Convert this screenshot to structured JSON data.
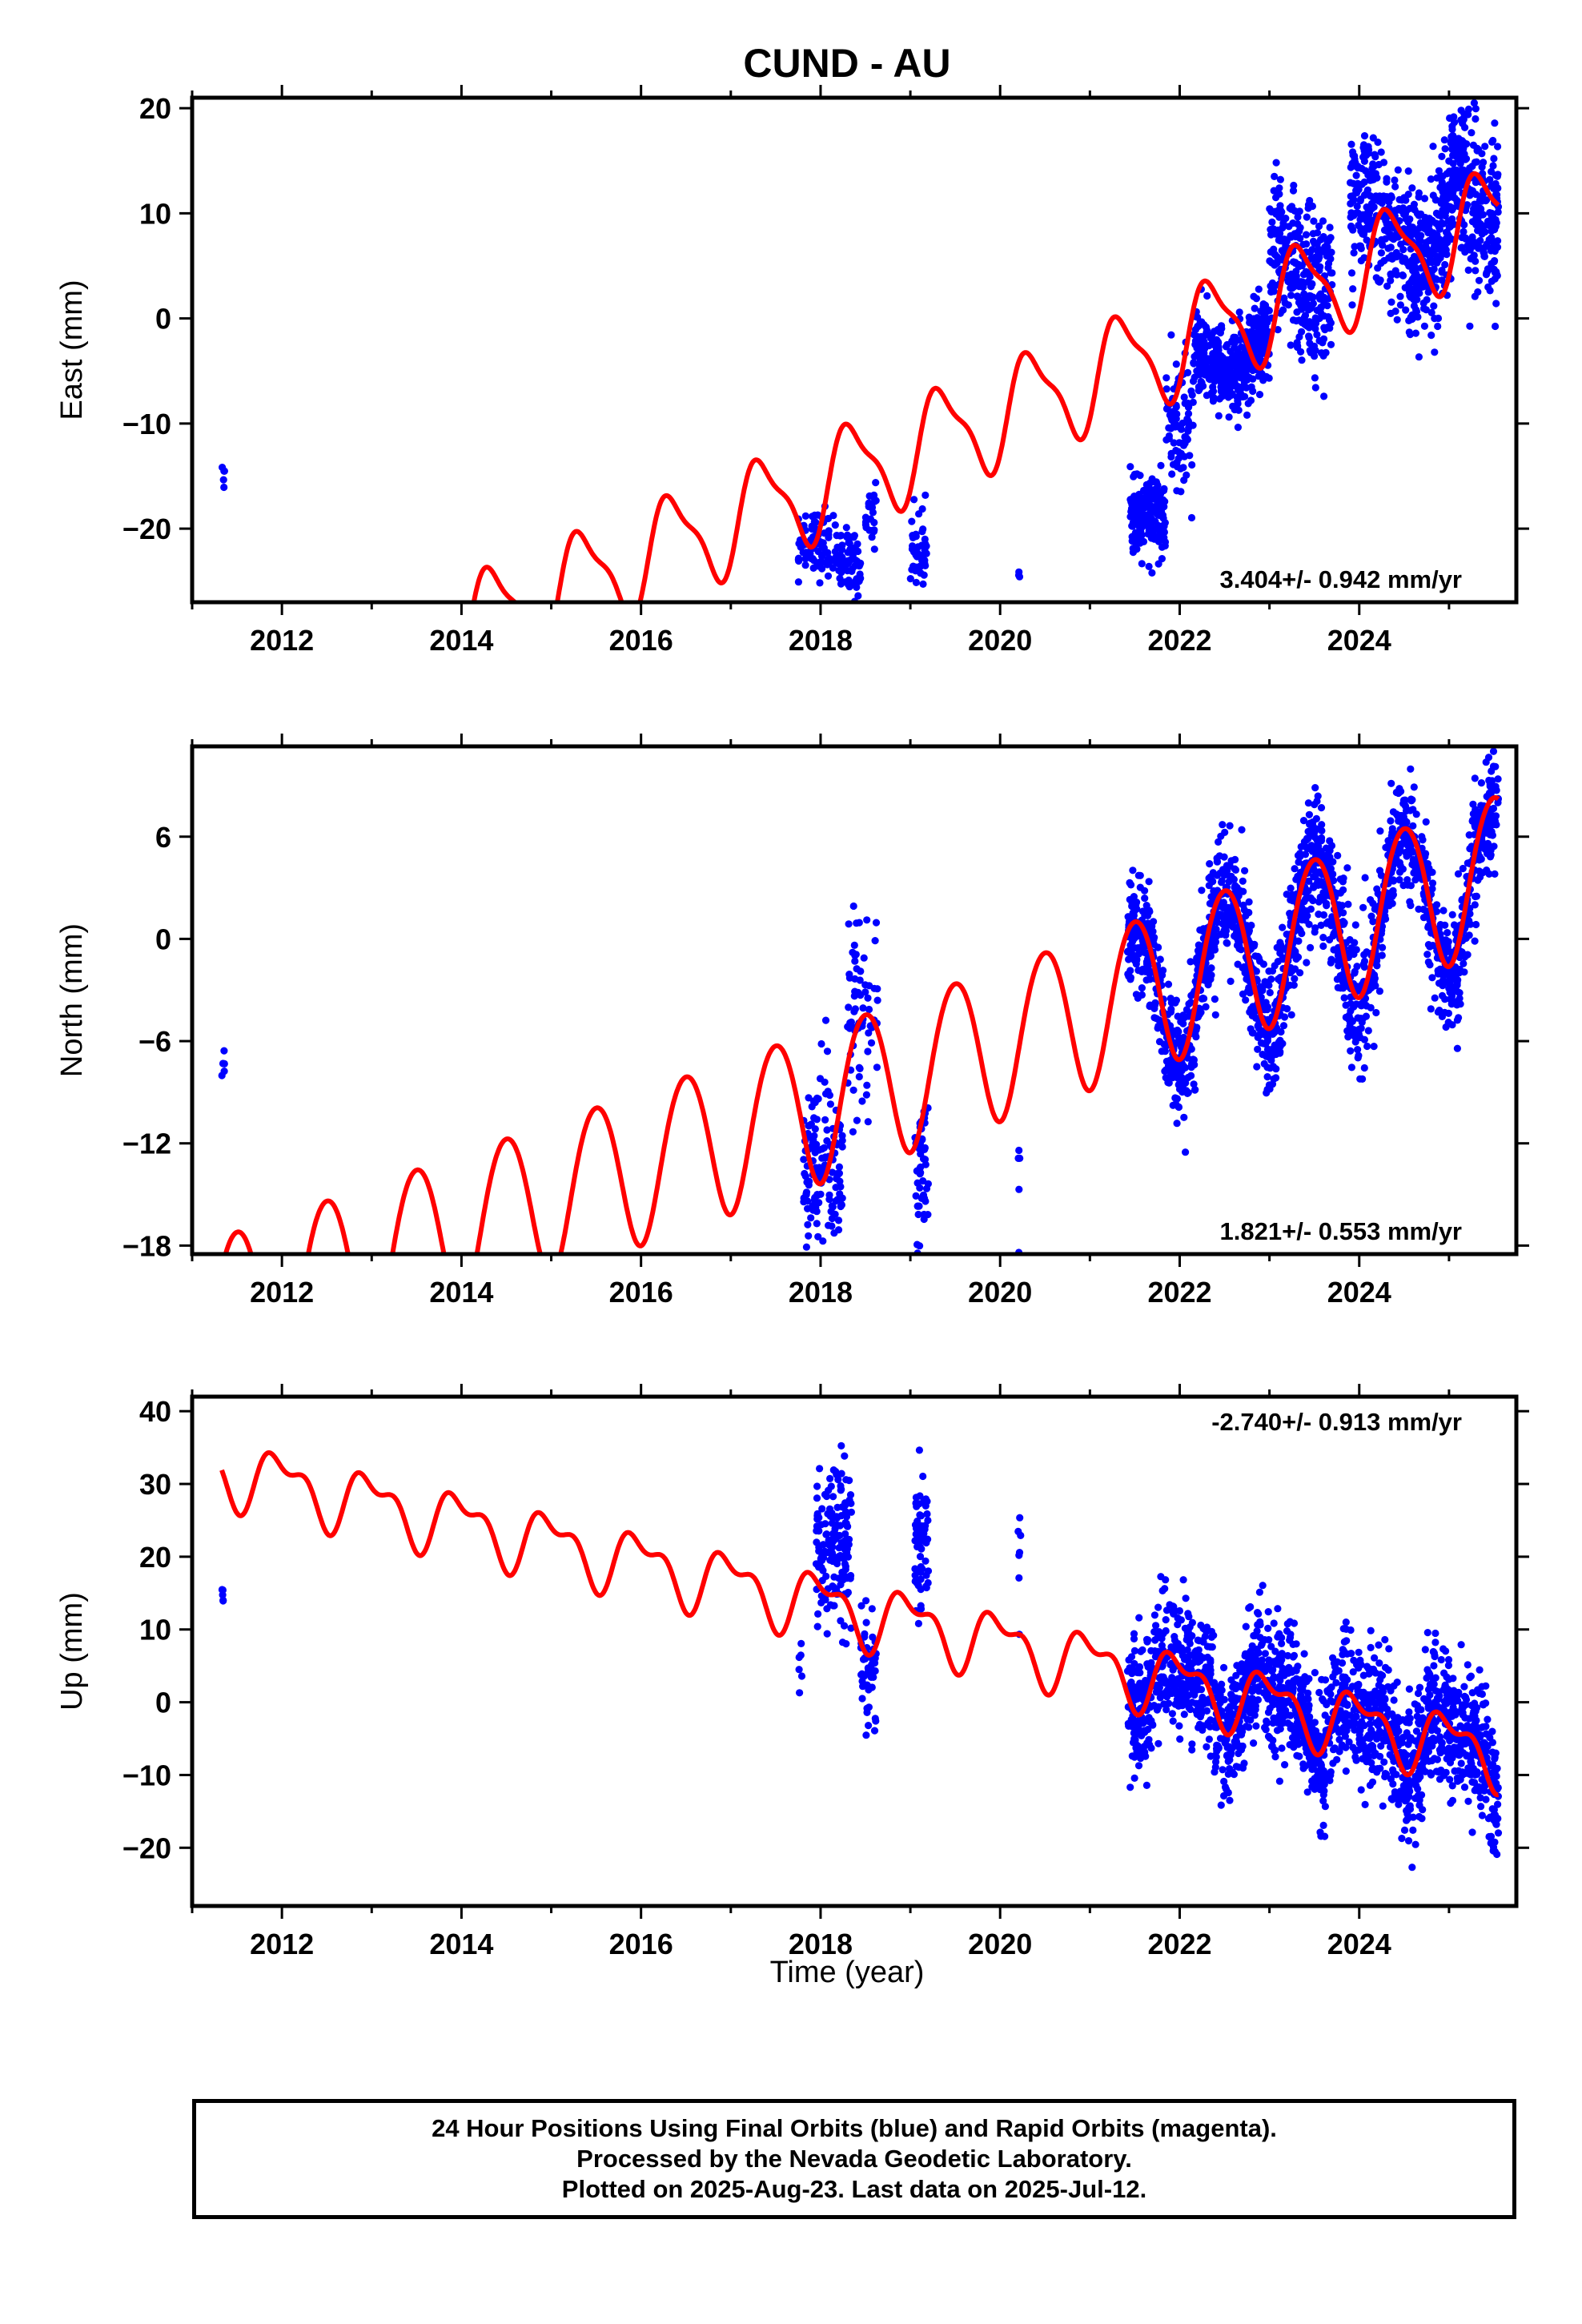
{
  "chart_data": {
    "type": "scatter",
    "title": "CUND - AU",
    "xlabel": "Time (year)",
    "xlim": [
      2011.0,
      2025.75
    ],
    "x_ticks": [
      2012,
      2014,
      2016,
      2018,
      2020,
      2022,
      2024
    ],
    "x_tick_labels": [
      "2012",
      "2014",
      "2016",
      "2018",
      "2020",
      "2022",
      "2024"
    ],
    "point_color": "#0000ff",
    "model_color": "#ff0000",
    "panels": [
      {
        "name": "East",
        "ylabel": "East (mm)",
        "ylim": [
          -27,
          21
        ],
        "y_ticks": [
          -20,
          -10,
          0,
          10,
          20
        ],
        "y_tick_labels": [
          "−20",
          "−10",
          "0",
          "10",
          "20"
        ],
        "rate_label": "3.404+/- 0.942 mm/yr",
        "rate_position": "bottom-right",
        "model": {
          "t0": 2021.5,
          "offset": -4.0,
          "rate": 3.404,
          "annual_amp": 4.6,
          "annual_peak": 0.35,
          "semi_amp": 1.4,
          "semi_peak": 0.2
        },
        "point_groups": [
          {
            "start": 2011.33,
            "end": 2011.36,
            "n": 5,
            "center": -14.0,
            "spread": 1.3,
            "amp": 0
          },
          {
            "start": 2017.75,
            "end": 2018.45,
            "n": 150,
            "center": -22.5,
            "spread": 1.6,
            "amp": 1.2
          },
          {
            "start": 2018.5,
            "end": 2018.62,
            "n": 25,
            "center": -18.5,
            "spread": 1.5,
            "amp": 0
          },
          {
            "start": 2019.0,
            "end": 2019.18,
            "n": 50,
            "center": -22.0,
            "spread": 1.8,
            "amp": 0
          },
          {
            "start": 2020.18,
            "end": 2020.22,
            "n": 5,
            "center": -25.0,
            "spread": 1.0,
            "amp": 0
          },
          {
            "start": 2021.45,
            "end": 2021.85,
            "n": 180,
            "center": -19.0,
            "spread": 1.8,
            "amp": 0
          },
          {
            "start": 2021.85,
            "end": 2022.15,
            "n": 90,
            "center": -10.0,
            "spread": 3.5,
            "amp": 0
          },
          {
            "start": 2022.15,
            "end": 2023.0,
            "n": 420,
            "center": -3.5,
            "spread": 2.0,
            "amp": 2.0
          },
          {
            "start": 2023.0,
            "end": 2023.7,
            "n": 300,
            "center": 4.5,
            "spread": 3.8,
            "amp": 2.5
          },
          {
            "start": 2023.9,
            "end": 2024.55,
            "n": 260,
            "center": 9.5,
            "spread": 3.0,
            "amp": 2.0
          },
          {
            "start": 2024.55,
            "end": 2025.0,
            "n": 260,
            "center": 6.0,
            "spread": 3.5,
            "amp": 2.0
          },
          {
            "start": 2025.0,
            "end": 2025.55,
            "n": 300,
            "center": 11.0,
            "spread": 4.0,
            "amp": 2.5
          }
        ]
      },
      {
        "name": "North",
        "ylabel": "North (mm)",
        "ylim": [
          -18.5,
          11.3
        ],
        "y_ticks": [
          -18,
          -12,
          -6,
          0,
          6
        ],
        "y_tick_labels": [
          "−18",
          "−12",
          "−6",
          "0",
          "6"
        ],
        "rate_label": "1.821+/- 0.553 mm/yr",
        "rate_position": "bottom-right",
        "model": {
          "t0": 2021.5,
          "offset": -3.2,
          "rate": 1.821,
          "annual_amp": 4.5,
          "annual_peak": 0.5,
          "semi_amp": 0.3,
          "semi_peak": 0.25
        },
        "point_groups": [
          {
            "start": 2011.33,
            "end": 2011.36,
            "n": 5,
            "center": -7.6,
            "spread": 0.8,
            "amp": 0
          },
          {
            "start": 2017.8,
            "end": 2018.25,
            "n": 140,
            "center": -14.5,
            "spread": 2.8,
            "amp": 1.0
          },
          {
            "start": 2018.3,
            "end": 2018.65,
            "n": 70,
            "center": -4.0,
            "spread": 2.8,
            "amp": 0
          },
          {
            "start": 2019.05,
            "end": 2019.2,
            "n": 55,
            "center": -14.0,
            "spread": 3.0,
            "amp": 0
          },
          {
            "start": 2020.2,
            "end": 2020.22,
            "n": 5,
            "center": -13.5,
            "spread": 2.5,
            "amp": 0
          },
          {
            "start": 2021.42,
            "end": 2025.55,
            "n": 1800,
            "center": -1.2,
            "spread": 1.8,
            "amp": 0,
            "follow": true
          }
        ]
      },
      {
        "name": "Up",
        "ylabel": "Up (mm)",
        "ylim": [
          -28,
          42
        ],
        "y_ticks": [
          -20,
          -10,
          0,
          10,
          20,
          30,
          40
        ],
        "y_tick_labels": [
          "−20",
          "−10",
          "0",
          "10",
          "20",
          "30",
          "40"
        ],
        "rate_label": "-2.740+/- 0.913 mm/yr",
        "rate_position": "top-right",
        "model": {
          "t0": 2021.5,
          "offset": 4.0,
          "rate": -2.74,
          "annual_amp": 3.8,
          "annual_peak": 0.0,
          "semi_amp": 2.0,
          "semi_peak": 0.3
        },
        "point_groups": [
          {
            "start": 2011.33,
            "end": 2011.36,
            "n": 5,
            "center": 15.3,
            "spread": 1.8,
            "amp": 0
          },
          {
            "start": 2017.75,
            "end": 2017.8,
            "n": 6,
            "center": 5.5,
            "spread": 2.0,
            "amp": 0
          },
          {
            "start": 2017.95,
            "end": 2018.35,
            "n": 170,
            "center": 21.0,
            "spread": 5.5,
            "amp": 0
          },
          {
            "start": 2018.45,
            "end": 2018.62,
            "n": 50,
            "center": 5.0,
            "spread": 3.5,
            "amp": 0
          },
          {
            "start": 2019.05,
            "end": 2019.2,
            "n": 60,
            "center": 22.0,
            "spread": 5.0,
            "amp": 0
          },
          {
            "start": 2020.2,
            "end": 2020.23,
            "n": 7,
            "center": 18.0,
            "spread": 6.5,
            "amp": 0
          },
          {
            "start": 2021.42,
            "end": 2025.55,
            "n": 1800,
            "center": 0.0,
            "spread": 4.5,
            "amp": 0,
            "follow": true
          }
        ]
      }
    ]
  },
  "caption": {
    "line1": "24 Hour Positions Using Final Orbits (blue) and Rapid Orbits (magenta).",
    "line2": "Processed by the Nevada Geodetic Laboratory.",
    "line3": "Plotted on 2025-Aug-23. Last data on 2025-Jul-12."
  }
}
